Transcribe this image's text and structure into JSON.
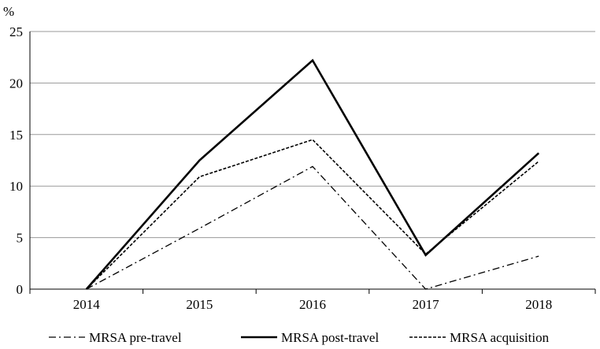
{
  "chart_data": {
    "type": "line",
    "title": "",
    "xlabel": "",
    "ylabel": "%",
    "ylim": [
      0,
      25
    ],
    "yticks": [
      0,
      5,
      10,
      15,
      20,
      25
    ],
    "grid": true,
    "legend_position": "bottom",
    "categories": [
      "2014",
      "2015",
      "2016",
      "2017",
      "2018"
    ],
    "series": [
      {
        "name": "MRSA pre-travel",
        "style": "dash-dot",
        "values": [
          0,
          5.9,
          11.9,
          0,
          3.2
        ]
      },
      {
        "name": "MRSA post-travel",
        "style": "solid-bold",
        "values": [
          0,
          12.5,
          22.2,
          3.3,
          13.2
        ]
      },
      {
        "name": "MRSA acquisition",
        "style": "dashed",
        "values": [
          0,
          10.9,
          14.5,
          3.4,
          12.4
        ]
      }
    ]
  }
}
